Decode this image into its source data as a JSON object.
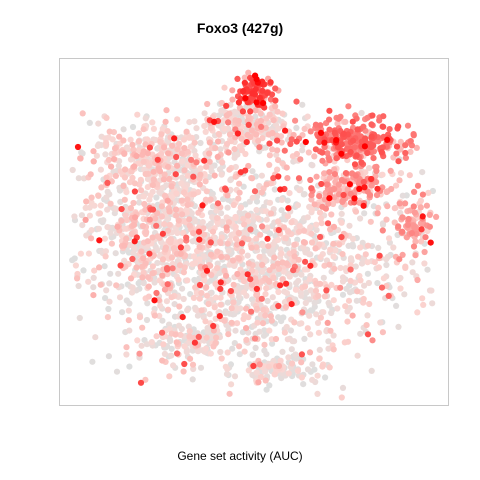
{
  "chart_data": {
    "type": "scatter",
    "title": "Foxo3 (427g)",
    "xlabel": "Gene set activity (AUC)",
    "ylabel": "",
    "axes_visible": false,
    "grid": false,
    "legend": "none",
    "color_scale": {
      "low": "#dedede",
      "mid": "#fbd6d2",
      "high": "#ff0000"
    },
    "value_range": [
      0,
      1
    ],
    "clusters": [
      {
        "cx": 0.5,
        "cy": 0.58,
        "rx": 0.42,
        "ry": 0.3,
        "n": 1500,
        "activity": 0.1
      },
      {
        "cx": 0.22,
        "cy": 0.45,
        "rx": 0.2,
        "ry": 0.22,
        "n": 450,
        "activity": 0.12
      },
      {
        "cx": 0.24,
        "cy": 0.26,
        "rx": 0.18,
        "ry": 0.09,
        "n": 260,
        "activity": 0.15
      },
      {
        "cx": 0.48,
        "cy": 0.18,
        "rx": 0.12,
        "ry": 0.08,
        "n": 220,
        "activity": 0.12
      },
      {
        "cx": 0.77,
        "cy": 0.22,
        "rx": 0.15,
        "ry": 0.07,
        "n": 260,
        "activity": 0.55
      },
      {
        "cx": 0.5,
        "cy": 0.07,
        "rx": 0.06,
        "ry": 0.05,
        "n": 90,
        "activity": 0.7
      },
      {
        "cx": 0.76,
        "cy": 0.36,
        "rx": 0.12,
        "ry": 0.06,
        "n": 150,
        "activity": 0.35
      },
      {
        "cx": 0.93,
        "cy": 0.47,
        "rx": 0.05,
        "ry": 0.09,
        "n": 80,
        "activity": 0.35
      },
      {
        "cx": 0.55,
        "cy": 0.91,
        "rx": 0.12,
        "ry": 0.05,
        "n": 110,
        "activity": 0.05
      },
      {
        "cx": 0.32,
        "cy": 0.83,
        "rx": 0.12,
        "ry": 0.06,
        "n": 110,
        "activity": 0.08
      }
    ]
  }
}
